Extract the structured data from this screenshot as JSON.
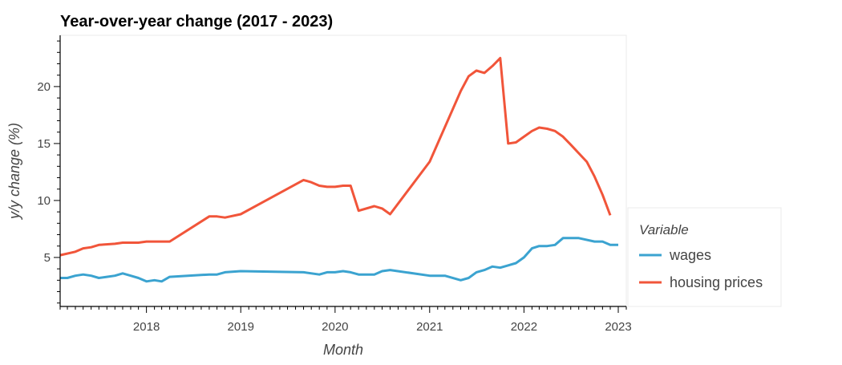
{
  "chart_data": {
    "type": "line",
    "title": "Year-over-year change (2017 - 2023)",
    "xlabel": "Month",
    "ylabel": "y/y change (%)",
    "xlim": [
      "2017-02-01",
      "2023-02-01"
    ],
    "ylim": [
      0.7,
      24.5
    ],
    "x_ticks": [
      {
        "value": "2018-01-01",
        "label": "2018"
      },
      {
        "value": "2019-01-01",
        "label": "2019"
      },
      {
        "value": "2020-01-01",
        "label": "2020"
      },
      {
        "value": "2021-01-01",
        "label": "2021"
      },
      {
        "value": "2022-01-01",
        "label": "2022"
      },
      {
        "value": "2023-01-01",
        "label": "2023"
      }
    ],
    "y_ticks": [
      5,
      10,
      15,
      20
    ],
    "grid": false,
    "legend": {
      "title": "Variable",
      "placement": "bottom-right, outside"
    },
    "series": [
      {
        "name": "wages",
        "color": "#3ba3d0",
        "points": [
          [
            "2017-02-01",
            3.2
          ],
          [
            "2017-03-01",
            3.2
          ],
          [
            "2017-04-01",
            3.4
          ],
          [
            "2017-05-01",
            3.5
          ],
          [
            "2017-06-01",
            3.4
          ],
          [
            "2017-07-01",
            3.2
          ],
          [
            "2017-08-01",
            3.3
          ],
          [
            "2017-09-01",
            3.4
          ],
          [
            "2017-10-01",
            3.6
          ],
          [
            "2017-11-01",
            3.4
          ],
          [
            "2017-12-01",
            3.2
          ],
          [
            "2018-01-01",
            2.9
          ],
          [
            "2018-02-01",
            3.0
          ],
          [
            "2018-03-01",
            2.9
          ],
          [
            "2018-04-01",
            3.3
          ],
          [
            "2018-09-01",
            3.5
          ],
          [
            "2018-10-01",
            3.5
          ],
          [
            "2018-11-01",
            3.7
          ],
          [
            "2019-01-01",
            3.8
          ],
          [
            "2019-09-01",
            3.7
          ],
          [
            "2019-11-01",
            3.5
          ],
          [
            "2019-12-01",
            3.7
          ],
          [
            "2020-01-01",
            3.7
          ],
          [
            "2020-02-01",
            3.8
          ],
          [
            "2020-03-01",
            3.7
          ],
          [
            "2020-04-01",
            3.5
          ],
          [
            "2020-06-01",
            3.5
          ],
          [
            "2020-07-01",
            3.8
          ],
          [
            "2020-08-01",
            3.9
          ],
          [
            "2021-01-01",
            3.4
          ],
          [
            "2021-03-01",
            3.4
          ],
          [
            "2021-05-01",
            3.0
          ],
          [
            "2021-06-01",
            3.2
          ],
          [
            "2021-07-01",
            3.7
          ],
          [
            "2021-08-01",
            3.9
          ],
          [
            "2021-09-01",
            4.2
          ],
          [
            "2021-10-01",
            4.1
          ],
          [
            "2021-12-01",
            4.5
          ],
          [
            "2022-01-01",
            5.0
          ],
          [
            "2022-02-01",
            5.8
          ],
          [
            "2022-03-01",
            6.0
          ],
          [
            "2022-04-01",
            6.0
          ],
          [
            "2022-05-01",
            6.1
          ],
          [
            "2022-06-01",
            6.7
          ],
          [
            "2022-08-01",
            6.7
          ],
          [
            "2022-10-01",
            6.4
          ],
          [
            "2022-11-01",
            6.4
          ],
          [
            "2022-12-01",
            6.1
          ],
          [
            "2023-01-01",
            6.1
          ]
        ]
      },
      {
        "name": "housing prices",
        "color": "#f1553a",
        "points": [
          [
            "2017-02-01",
            5.2
          ],
          [
            "2017-04-01",
            5.5
          ],
          [
            "2017-05-01",
            5.8
          ],
          [
            "2017-06-01",
            5.9
          ],
          [
            "2017-07-01",
            6.1
          ],
          [
            "2017-09-01",
            6.2
          ],
          [
            "2017-10-01",
            6.3
          ],
          [
            "2017-12-01",
            6.3
          ],
          [
            "2018-01-01",
            6.4
          ],
          [
            "2018-04-01",
            6.4
          ],
          [
            "2018-09-01",
            8.6
          ],
          [
            "2018-10-01",
            8.6
          ],
          [
            "2018-11-01",
            8.5
          ],
          [
            "2019-01-01",
            8.8
          ],
          [
            "2019-09-01",
            11.8
          ],
          [
            "2019-10-01",
            11.6
          ],
          [
            "2019-11-01",
            11.3
          ],
          [
            "2019-12-01",
            11.2
          ],
          [
            "2020-01-01",
            11.2
          ],
          [
            "2020-02-01",
            11.3
          ],
          [
            "2020-03-01",
            11.3
          ],
          [
            "2020-04-01",
            9.1
          ],
          [
            "2020-06-01",
            9.5
          ],
          [
            "2020-07-01",
            9.3
          ],
          [
            "2020-08-01",
            8.8
          ],
          [
            "2021-01-01",
            13.4
          ],
          [
            "2021-02-01",
            15.0
          ],
          [
            "2021-05-01",
            19.6
          ],
          [
            "2021-06-01",
            20.9
          ],
          [
            "2021-07-01",
            21.4
          ],
          [
            "2021-08-01",
            21.2
          ],
          [
            "2021-09-01",
            21.8
          ],
          [
            "2021-10-01",
            22.5
          ],
          [
            "2021-11-01",
            15.0
          ],
          [
            "2021-12-01",
            15.1
          ],
          [
            "2022-01-01",
            15.6
          ],
          [
            "2022-02-01",
            16.1
          ],
          [
            "2022-03-01",
            16.4
          ],
          [
            "2022-04-01",
            16.3
          ],
          [
            "2022-05-01",
            16.1
          ],
          [
            "2022-06-01",
            15.6
          ],
          [
            "2022-07-01",
            14.9
          ],
          [
            "2022-09-01",
            13.4
          ],
          [
            "2022-10-01",
            12.1
          ],
          [
            "2022-11-01",
            10.5
          ],
          [
            "2022-12-01",
            8.7
          ]
        ]
      }
    ]
  }
}
